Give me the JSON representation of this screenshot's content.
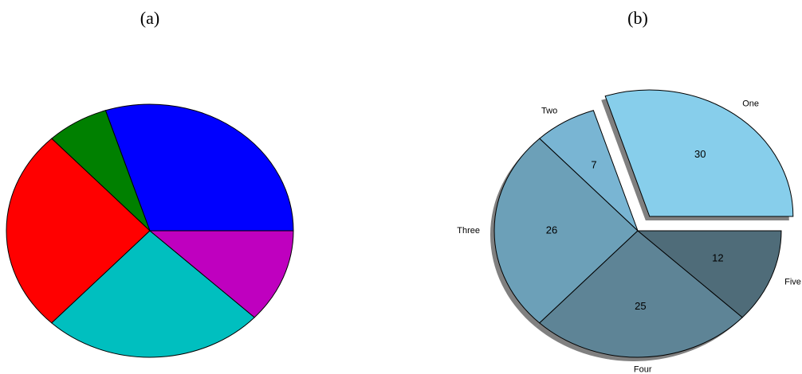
{
  "chart_data": [
    {
      "type": "pie",
      "title": "(a)",
      "values": [
        30,
        7,
        26,
        25,
        12
      ],
      "colors": [
        "#0000ff",
        "#008000",
        "#ff0000",
        "#00bfbf",
        "#bf00bf"
      ]
    },
    {
      "type": "pie",
      "title": "(b)",
      "categories": [
        "One",
        "Two",
        "Three",
        "Four",
        "Five"
      ],
      "values": [
        30,
        7,
        26,
        25,
        12
      ],
      "colors": [
        "#87ceeb",
        "#79b5d3",
        "#6ca0b8",
        "#5e8496",
        "#4f6c79"
      ],
      "exploded": "One",
      "shadow": true
    }
  ]
}
